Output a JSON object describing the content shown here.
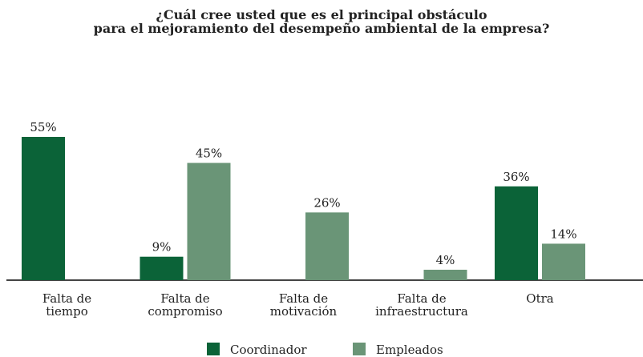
{
  "chart_data": {
    "type": "bar",
    "title": "¿Cuál cree usted que es el principal obstáculo\npara el mejoramiento del desempeño ambiental de la empresa?",
    "categories": [
      "Falta de\ntiempo",
      "Falta de\ncompromiso",
      "Falta de\nmotivación",
      "Falta de\ninfraestructura",
      "Otra"
    ],
    "series": [
      {
        "name": "Coordinador",
        "color": "#0b6338",
        "values": [
          55,
          9,
          null,
          null,
          36
        ],
        "value_labels": [
          "55%",
          "9%",
          null,
          null,
          "36%"
        ]
      },
      {
        "name": "Empleados",
        "color": "#6a9577",
        "values": [
          null,
          45,
          26,
          4,
          14
        ],
        "value_labels": [
          null,
          "45%",
          "26%",
          "4%",
          "14%"
        ]
      }
    ]
  }
}
